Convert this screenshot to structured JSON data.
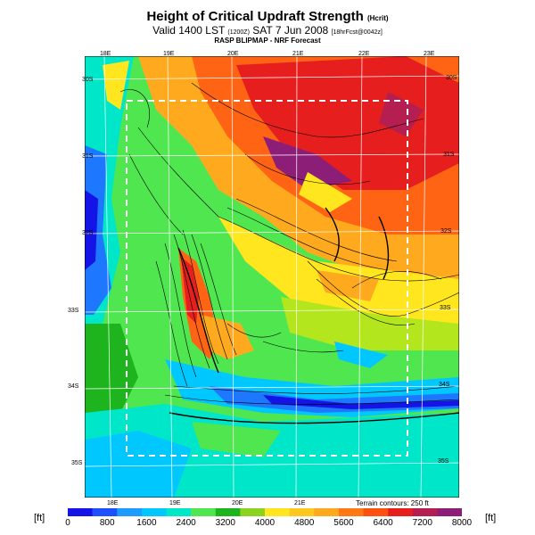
{
  "header": {
    "title": "Height of Critical Updraft Strength",
    "title_suffix": "(Hcrit)",
    "valid_line_a": "Valid 1400 LST",
    "valid_line_b": "(1200Z)",
    "valid_line_c": "SAT 7 Jun 2008",
    "valid_line_d": "[18hrFcst@0042z]",
    "subtitle": "RASP BLIPMAP - NRF Forecast"
  },
  "map": {
    "lon_top": [
      "18E",
      "19E",
      "20E",
      "21E",
      "22E",
      "23E"
    ],
    "lon_bottom": [
      "18E",
      "19E",
      "20E",
      "21E"
    ],
    "lat_left": [
      "30S",
      "31S",
      "32S",
      "33S",
      "34S",
      "35S"
    ],
    "lat_right": [
      "30S",
      "31S",
      "32S",
      "33S",
      "34S",
      "35S"
    ],
    "terrain_note": "Terrain contours: 250 ft",
    "colors": {
      "blue_dark": "#1414e6",
      "blue": "#1e78ff",
      "cyan": "#00c8ff",
      "teal": "#00e6c8",
      "green_light": "#50e650",
      "green": "#1eb41e",
      "yellow_green": "#b4e61e",
      "yellow": "#ffe61e",
      "orange": "#ffaa1e",
      "red_orange": "#ff6414",
      "red": "#e61e1e",
      "purple": "#8c1e78"
    }
  },
  "colorbar": {
    "unit_left": "[ft]",
    "unit_right": "[ft]",
    "labels": [
      "0",
      "800",
      "1600",
      "2400",
      "3200",
      "4000",
      "4800",
      "5600",
      "6400",
      "7200",
      "8000"
    ],
    "colors": [
      "#1414e6",
      "#1e50ff",
      "#1e9bff",
      "#00c8ff",
      "#00e6c8",
      "#50e650",
      "#1eb41e",
      "#8cd21e",
      "#ffe61e",
      "#ffc81e",
      "#ffaa1e",
      "#ff7814",
      "#ff5014",
      "#e61e1e",
      "#b41e50",
      "#8c1e78"
    ]
  }
}
